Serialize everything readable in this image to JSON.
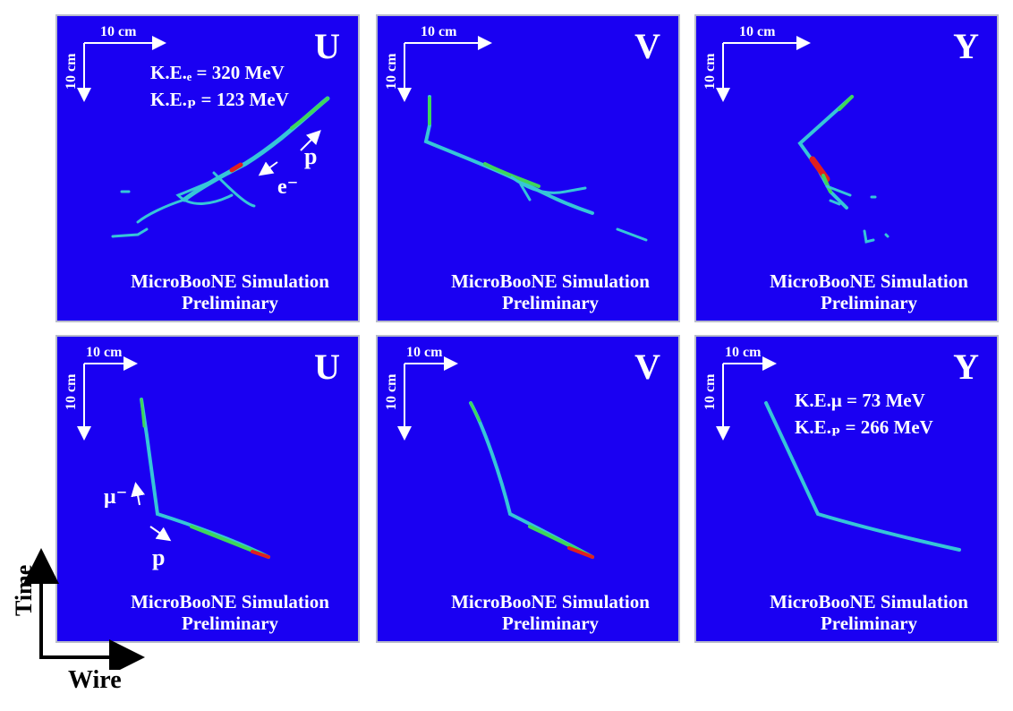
{
  "colors": {
    "panel_bg": "#1a00f2",
    "track_main": "#36c6d8",
    "track_hot": "#3fd65a",
    "track_peak": "#e02020",
    "frame": "#b9bccb"
  },
  "scale_bar": {
    "horizontal": "10 cm",
    "vertical": "10 cm"
  },
  "watermark": {
    "line1": "MicroBooNE Simulation",
    "line2": "Preliminary"
  },
  "panels": [
    {
      "plane": "U",
      "ke_lines": [
        "K.E.ₑ = 320 MeV",
        "K.E.ₚ = 123 MeV"
      ],
      "labels": [
        "p",
        "e⁻"
      ]
    },
    {
      "plane": "V"
    },
    {
      "plane": "Y"
    },
    {
      "plane": "U",
      "labels": [
        "μ⁻",
        "p"
      ]
    },
    {
      "plane": "V"
    },
    {
      "plane": "Y",
      "ke_lines": [
        "K.E.μ = 73 MeV",
        "K.E.ₚ = 266 MeV"
      ]
    }
  ],
  "axes": {
    "time": "Time",
    "wire": "Wire"
  }
}
